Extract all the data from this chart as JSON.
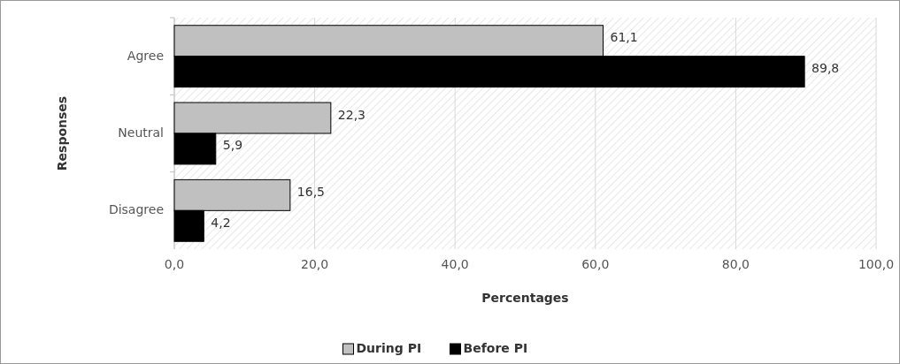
{
  "chart_data": {
    "type": "bar",
    "orientation": "horizontal",
    "xlabel": "Percentages",
    "ylabel": "Responses",
    "categories": [
      "Agree",
      "Neutral",
      "Disagree"
    ],
    "series": [
      {
        "name": "During PI",
        "color": "#c0c0c0",
        "values": [
          61.1,
          22.3,
          16.5
        ],
        "value_labels": [
          "61,1",
          "22,3",
          "16,5"
        ]
      },
      {
        "name": "Before PI",
        "color": "#000000",
        "values": [
          89.8,
          5.9,
          4.2
        ],
        "value_labels": [
          "89,8",
          "5,9",
          "4,2"
        ]
      }
    ],
    "xlim": [
      0,
      100
    ],
    "xticks": [
      {
        "value": 0,
        "label": "0,0"
      },
      {
        "value": 20,
        "label": "20,0"
      },
      {
        "value": 40,
        "label": "40,0"
      },
      {
        "value": 60,
        "label": "60,0"
      },
      {
        "value": 80,
        "label": "80,0"
      },
      {
        "value": 100,
        "label": "100,0"
      }
    ],
    "grid": "x",
    "legend": "bottom"
  }
}
